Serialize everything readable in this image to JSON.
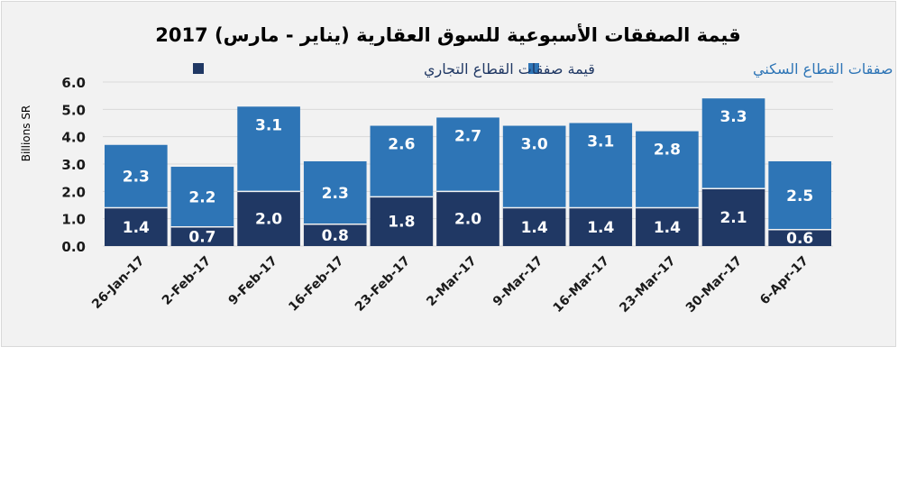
{
  "chart_data": {
    "type": "bar",
    "stacked": true,
    "title": "قيمة الصفقات الأسبوعية للسوق العقارية (يناير - مارس) 2017",
    "ylabel": "Billions SR",
    "xlabel": "",
    "ylim": [
      0,
      6
    ],
    "yticks": [
      "0.0",
      "1.0",
      "2.0",
      "3.0",
      "4.0",
      "5.0",
      "6.0"
    ],
    "grid": true,
    "legend_placement": "top",
    "categories": [
      "26-Jan-17",
      "2-Feb-17",
      "9-Feb-17",
      "16-Feb-17",
      "23-Feb-17",
      "2-Mar-17",
      "9-Mar-17",
      "16-Mar-17",
      "23-Mar-17",
      "30-Mar-17",
      "6-Apr-17"
    ],
    "series": [
      {
        "name": "قيمة صفقات القطاع التجاري",
        "color": "#203864",
        "values": [
          1.4,
          0.7,
          2.0,
          0.8,
          1.8,
          2.0,
          1.4,
          1.4,
          1.4,
          2.1,
          0.6
        ]
      },
      {
        "name": "قيمة صفقات القطاع السكني",
        "color": "#2e75b6",
        "values": [
          2.3,
          2.2,
          3.1,
          2.3,
          2.6,
          2.7,
          3.0,
          3.1,
          2.8,
          3.3,
          2.5
        ]
      }
    ]
  }
}
